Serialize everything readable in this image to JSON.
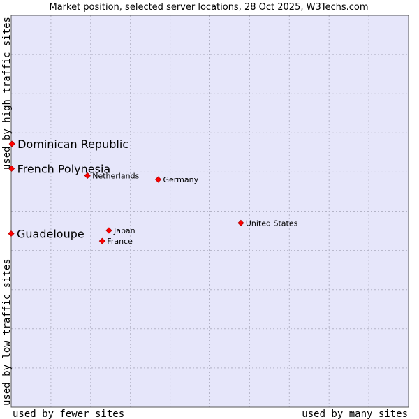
{
  "chart_data": {
    "type": "scatter",
    "title": "Market position, selected server locations, 28 Oct 2025, W3Techs.com",
    "xlabel_low": "used by fewer sites",
    "xlabel_high": "used by many sites",
    "ylabel_low": "used by low traffic sites",
    "ylabel_high": "used by high traffic sites",
    "xlim": [
      0,
      100
    ],
    "ylim": [
      0,
      100
    ],
    "grid": true,
    "points": [
      {
        "label": "Dominican Republic",
        "x": 0.2,
        "y": 67.2,
        "highlight": true
      },
      {
        "label": "French Polynesia",
        "x": 0.1,
        "y": 60.9,
        "highlight": true
      },
      {
        "label": "Guadeloupe",
        "x": 0.0,
        "y": 44.3,
        "highlight": true
      },
      {
        "label": "Netherlands",
        "x": 19.2,
        "y": 59.1,
        "highlight": false
      },
      {
        "label": "Germany",
        "x": 37.0,
        "y": 58.1,
        "highlight": false
      },
      {
        "label": "United States",
        "x": 57.8,
        "y": 47.0,
        "highlight": false
      },
      {
        "label": "Japan",
        "x": 24.6,
        "y": 45.1,
        "highlight": false
      },
      {
        "label": "France",
        "x": 22.9,
        "y": 42.4,
        "highlight": false
      }
    ],
    "colors": {
      "plot_background": "#e6e6fa",
      "grid": "#b3b3c6",
      "marker": "#ff0000",
      "marker_edge": "#b00000"
    }
  }
}
